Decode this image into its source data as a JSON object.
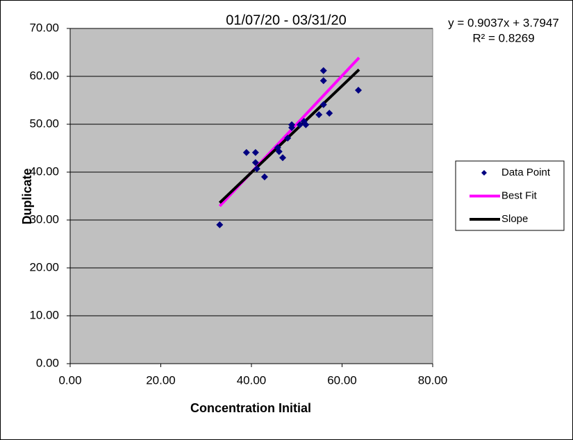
{
  "chart_data": {
    "type": "scatter",
    "title": "01/07/20 - 03/31/20",
    "x_label": "Concentration Initial",
    "y_label": "Duplicate",
    "annotations": [
      "y = 0.9037x + 3.7947",
      "R² = 0.8269"
    ],
    "xlim": [
      0,
      80
    ],
    "ylim": [
      0,
      70
    ],
    "xticks": [
      {
        "value": 0,
        "label": "0.00"
      },
      {
        "value": 20,
        "label": "20.00"
      },
      {
        "value": 40,
        "label": "40.00"
      },
      {
        "value": 60,
        "label": "60.00"
      },
      {
        "value": 80,
        "label": "80.00"
      }
    ],
    "yticks": [
      {
        "value": 0,
        "label": "0.00"
      },
      {
        "value": 10,
        "label": "10.00"
      },
      {
        "value": 20,
        "label": "20.00"
      },
      {
        "value": 30,
        "label": "30.00"
      },
      {
        "value": 40,
        "label": "40.00"
      },
      {
        "value": 50,
        "label": "50.00"
      },
      {
        "value": 60,
        "label": "60.00"
      },
      {
        "value": 70,
        "label": "70.00"
      }
    ],
    "grid": true,
    "plot_background": "#c0c0c0",
    "legend_position": "right",
    "series": [
      {
        "name": "Data Point",
        "type": "scatter",
        "color": "#000080",
        "x": [
          33,
          38.9,
          40.9,
          40.9,
          41.2,
          42.9,
          45.8,
          46.1,
          46.9,
          48.0,
          48.9,
          48.9,
          50.7,
          51.6,
          52.0,
          54.9,
          55.9,
          55.9,
          55.9,
          57.2,
          63.6
        ],
        "values": [
          29.0,
          44.1,
          44.1,
          42.0,
          40.7,
          39.0,
          45.1,
          44.3,
          43.0,
          47.1,
          49.9,
          49.3,
          49.9,
          50.6,
          49.9,
          52.0,
          54.1,
          59.1,
          61.2,
          52.3,
          57.1
        ]
      },
      {
        "name": "Best Fit",
        "type": "line",
        "color": "#ff00ff",
        "x": [
          33,
          63.75
        ],
        "values": [
          32.9,
          63.9
        ]
      },
      {
        "name": "Slope",
        "type": "line",
        "color": "#000000",
        "x": [
          33,
          63.75
        ],
        "values": [
          33.6,
          61.4
        ]
      }
    ]
  }
}
